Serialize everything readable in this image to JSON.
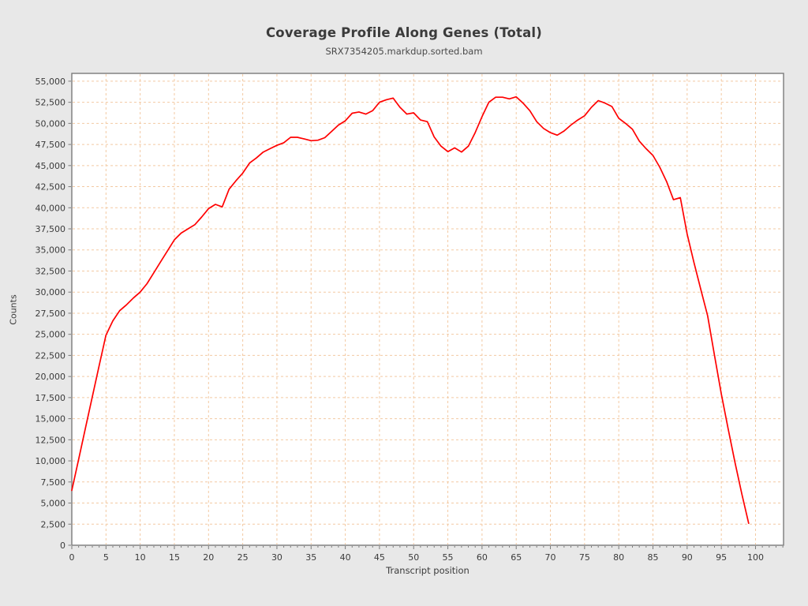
{
  "chart_data": {
    "type": "line",
    "title": "Coverage Profile Along Genes (Total)",
    "subtitle": "SRX7354205.markdup.sorted.bam",
    "xlabel": "Transcript position",
    "ylabel": "Counts",
    "xlim": [
      0,
      104.1
    ],
    "ylim": [
      0,
      55925
    ],
    "grid": true,
    "legend_position": "none",
    "x_ticks": [
      0,
      5,
      10,
      15,
      20,
      25,
      30,
      35,
      40,
      45,
      50,
      55,
      60,
      65,
      70,
      75,
      80,
      85,
      90,
      95,
      100
    ],
    "x_tick_labels": [
      "0",
      "5",
      "10",
      "15",
      "20",
      "25",
      "30",
      "35",
      "40",
      "45",
      "50",
      "55",
      "60",
      "65",
      "70",
      "75",
      "80",
      "85",
      "90",
      "95",
      "100"
    ],
    "x_minor_tick_step": 1,
    "y_ticks": [
      0,
      2500,
      5000,
      7500,
      10000,
      12500,
      15000,
      17500,
      20000,
      22500,
      25000,
      27500,
      30000,
      32500,
      35000,
      37500,
      40000,
      42500,
      45000,
      47500,
      50000,
      52500,
      55000
    ],
    "y_tick_labels": [
      "0",
      "2,500",
      "5,000",
      "7,500",
      "10,000",
      "12,500",
      "15,000",
      "17,500",
      "20,000",
      "22,500",
      "25,000",
      "27,500",
      "30,000",
      "32,500",
      "35,000",
      "37,500",
      "40,000",
      "42,500",
      "45,000",
      "47,500",
      "50,000",
      "52,500",
      "55,000"
    ],
    "colors": {
      "line": "#ff0000",
      "grid": "#f3c9a2",
      "plot_background": "#ffffff",
      "page_background": "#e8e8e8",
      "frame": "#7a7a7a",
      "text": "#3b3b3b"
    },
    "series": [
      {
        "name": "Coverage (Total)",
        "x": [
          0,
          1,
          2,
          3,
          4,
          5,
          6,
          7,
          8,
          9,
          10,
          11,
          12,
          13,
          14,
          15,
          16,
          17,
          18,
          19,
          20,
          21,
          22,
          23,
          24,
          25,
          26,
          27,
          28,
          29,
          30,
          31,
          32,
          33,
          34,
          35,
          36,
          37,
          38,
          39,
          40,
          41,
          42,
          43,
          44,
          45,
          46,
          47,
          48,
          49,
          50,
          51,
          52,
          53,
          54,
          55,
          56,
          57,
          58,
          59,
          60,
          61,
          62,
          63,
          64,
          65,
          66,
          67,
          68,
          69,
          70,
          71,
          72,
          73,
          74,
          75,
          76,
          77,
          78,
          79,
          80,
          81,
          82,
          83,
          84,
          85,
          86,
          87,
          88,
          89,
          90,
          91,
          92,
          93,
          94,
          95,
          96,
          97,
          98,
          99
        ],
        "values": [
          6500,
          10200,
          13900,
          17600,
          21300,
          24900,
          26600,
          27800,
          28500,
          29300,
          30000,
          31000,
          32300,
          33600,
          34900,
          36200,
          37000,
          37500,
          38000,
          38900,
          39900,
          40400,
          40100,
          42200,
          43200,
          44100,
          45300,
          45900,
          46600,
          47000,
          47400,
          47700,
          48350,
          48350,
          48150,
          47950,
          48000,
          48300,
          49050,
          49800,
          50300,
          51200,
          51350,
          51100,
          51500,
          52500,
          52800,
          53000,
          51900,
          51100,
          51250,
          50400,
          50200,
          48400,
          47300,
          46650,
          47100,
          46600,
          47300,
          48900,
          50800,
          52500,
          53100,
          53100,
          52900,
          53150,
          52400,
          51500,
          50200,
          49400,
          48900,
          48600,
          49100,
          49800,
          50400,
          50900,
          51900,
          52700,
          52400,
          52000,
          50600,
          50000,
          49300,
          47900,
          47000,
          46200,
          44800,
          43100,
          40950,
          41200,
          36900,
          33500,
          30300,
          27200,
          22500,
          17900,
          13800,
          9800,
          6100,
          2600
        ]
      }
    ]
  }
}
